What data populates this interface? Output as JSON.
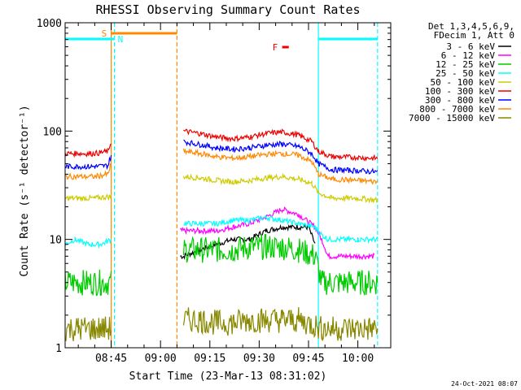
{
  "chart_data": {
    "type": "line",
    "title": "RHESSI Observing Summary Count Rates",
    "xlabel": "Start Time (23-Mar-13 08:31:02)",
    "ylabel": "Count Rate (s⁻¹ detector⁻¹)",
    "y_scale": "log",
    "ylim": [
      1,
      1000
    ],
    "xlim": [
      "08:31",
      "10:10"
    ],
    "x_ticks": [
      "08:45",
      "09:00",
      "09:15",
      "09:30",
      "09:45",
      "10:00"
    ],
    "y_ticks": [
      "1",
      "10",
      "100",
      "1000"
    ],
    "legend_header": [
      "Det 1,3,4,5,6,9,",
      "FDecim 1, Att 0"
    ],
    "series": [
      {
        "name": "3 - 6 keV",
        "color": "#000000",
        "x": [
          "09:06",
          "09:07",
          "09:12",
          "09:17",
          "09:22",
          "09:27",
          "09:32",
          "09:37",
          "09:42",
          "09:45",
          "09:47"
        ],
        "y": [
          7,
          7,
          8,
          9,
          10,
          10,
          12,
          13,
          13,
          13,
          9
        ]
      },
      {
        "name": "6 - 12 keV",
        "color": "#ff00ff",
        "x": [
          "09:06",
          "09:12",
          "09:17",
          "09:22",
          "09:27",
          "09:32",
          "09:37",
          "09:42",
          "09:47",
          "09:49",
          "09:51",
          "10:05"
        ],
        "y": [
          12,
          12,
          12,
          13,
          14,
          16,
          19,
          17,
          13,
          10,
          7,
          7
        ]
      },
      {
        "name": "12 - 25 keV",
        "color": "#00cc00",
        "x": [
          "08:31",
          "08:36",
          "08:42",
          "08:45",
          "09:07",
          "09:12",
          "09:17",
          "09:22",
          "09:27",
          "09:32",
          "09:37",
          "09:42",
          "09:47",
          "09:49",
          "10:06"
        ],
        "y": [
          4,
          4,
          4,
          4,
          8,
          8,
          8,
          8,
          8.5,
          8.5,
          8.5,
          8,
          7,
          4,
          4
        ]
      },
      {
        "name": "25 - 50 keV",
        "color": "#00ffff",
        "x": [
          "08:31",
          "08:34",
          "08:38",
          "08:42",
          "08:45",
          "09:07",
          "09:12",
          "09:17",
          "09:22",
          "09:27",
          "09:32",
          "09:37",
          "09:42",
          "09:47",
          "09:49",
          "09:51",
          "09:55",
          "10:00",
          "10:06"
        ],
        "y": [
          9,
          10,
          9,
          9,
          10,
          14,
          14,
          14,
          15,
          15,
          16,
          15,
          14,
          13,
          11,
          10,
          10,
          10,
          10
        ]
      },
      {
        "name": "50 - 100 keV",
        "color": "#cccc00",
        "x": [
          "08:31",
          "08:35",
          "08:40",
          "08:45",
          "09:07",
          "09:12",
          "09:17",
          "09:22",
          "09:27",
          "09:32",
          "09:37",
          "09:42",
          "09:46",
          "09:48",
          "09:52",
          "10:00",
          "10:06"
        ],
        "y": [
          24,
          24,
          24,
          25,
          38,
          37,
          35,
          34,
          35,
          37,
          38,
          36,
          33,
          27,
          24,
          24,
          23
        ]
      },
      {
        "name": "100 - 300 keV",
        "color": "#ee0000",
        "x": [
          "08:31",
          "08:35",
          "08:40",
          "08:44",
          "08:45",
          "09:07",
          "09:12",
          "09:17",
          "09:22",
          "09:27",
          "09:32",
          "09:37",
          "09:42",
          "09:46",
          "09:48",
          "09:52",
          "10:00",
          "10:06"
        ],
        "y": [
          62,
          62,
          62,
          65,
          80,
          100,
          95,
          88,
          85,
          88,
          95,
          98,
          92,
          80,
          65,
          58,
          57,
          56
        ]
      },
      {
        "name": "300 - 800 keV",
        "color": "#0000ff",
        "x": [
          "08:31",
          "08:35",
          "08:40",
          "08:44",
          "08:45",
          "09:07",
          "09:12",
          "09:17",
          "09:22",
          "09:27",
          "09:32",
          "09:37",
          "09:42",
          "09:46",
          "09:48",
          "09:52",
          "10:00",
          "10:06"
        ],
        "y": [
          47,
          47,
          47,
          48,
          60,
          80,
          75,
          70,
          68,
          70,
          74,
          76,
          72,
          62,
          50,
          44,
          43,
          42
        ]
      },
      {
        "name": "800 - 7000 keV",
        "color": "#ff8800",
        "x": [
          "08:31",
          "08:35",
          "08:40",
          "08:44",
          "08:45",
          "09:07",
          "09:12",
          "09:17",
          "09:22",
          "09:27",
          "09:32",
          "09:37",
          "09:42",
          "09:46",
          "09:48",
          "09:52",
          "10:00",
          "10:06"
        ],
        "y": [
          38,
          38,
          38,
          40,
          50,
          65,
          62,
          58,
          56,
          58,
          61,
          62,
          60,
          52,
          40,
          36,
          35,
          34
        ]
      },
      {
        "name": "7000 - 15000 keV",
        "color": "#888800",
        "x": [
          "08:31",
          "08:35",
          "08:40",
          "08:45",
          "09:07",
          "09:12",
          "09:17",
          "09:22",
          "09:27",
          "09:32",
          "09:37",
          "09:42",
          "09:47",
          "09:49",
          "10:06"
        ],
        "y": [
          1.5,
          1.5,
          1.5,
          1.5,
          1.8,
          1.8,
          1.7,
          1.7,
          1.8,
          1.8,
          1.8,
          1.8,
          1.6,
          1.5,
          1.5
        ]
      }
    ],
    "flags": [
      {
        "label": "S",
        "color": "#ff8800",
        "start": "08:45",
        "end": "09:05"
      },
      {
        "label": "N",
        "color": "#00ffff",
        "start": "08:31",
        "end": "08:46"
      },
      {
        "label": "N",
        "color": "#00ffff",
        "start": "09:48",
        "end": "10:06",
        "no_label": true
      },
      {
        "label": "F",
        "color": "#ee0000",
        "start": "09:37",
        "end": "09:39"
      }
    ],
    "vlines": [
      {
        "t": "08:45",
        "color": "#ff8800",
        "style": "solid"
      },
      {
        "t": "08:46",
        "color": "#00ffff",
        "style": "dashed"
      },
      {
        "t": "09:05",
        "color": "#ff8800",
        "style": "dashed"
      },
      {
        "t": "09:48",
        "color": "#00ffff",
        "style": "solid"
      },
      {
        "t": "10:06",
        "color": "#00ffff",
        "style": "dashed"
      }
    ]
  },
  "footer_timestamp": "24-Oct-2021 08:07"
}
